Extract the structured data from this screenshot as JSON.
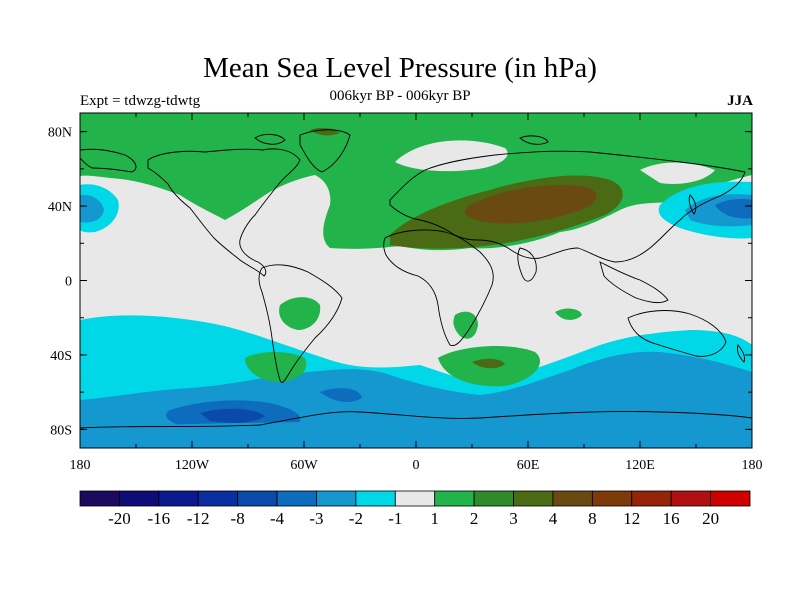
{
  "title": "Mean Sea Level Pressure (in hPa)",
  "subtitle_left": "Expt = tdwzg-tdwtg",
  "subtitle_center": "006kyr BP - 006kyr BP",
  "subtitle_right": "JJA",
  "map": {
    "projection": "cylindrical equidistant",
    "lon_range": [
      -180,
      180
    ],
    "lat_range": [
      -90,
      90
    ],
    "x_ticks": [
      "180",
      "120W",
      "60W",
      "0",
      "60E",
      "120E",
      "180"
    ],
    "y_ticks": [
      "80N",
      "40N",
      "0",
      "40S",
      "80S"
    ]
  },
  "colorbar": {
    "colors": [
      "#1b0a5e",
      "#0f0c78",
      "#0b1a8c",
      "#0a2fa0",
      "#0b4aa8",
      "#0d6cbc",
      "#1598d0",
      "#00d8e8",
      "#e8e8e8",
      "#22b34a",
      "#2e8a2a",
      "#4a6a14",
      "#6a4a10",
      "#7d3a0a",
      "#94240a",
      "#b01010",
      "#d00000"
    ],
    "labels": [
      "-20",
      "-16",
      "-12",
      "-8",
      "-4",
      "-3",
      "-2",
      "-1",
      "1",
      "2",
      "3",
      "4",
      "8",
      "12",
      "16",
      "20"
    ]
  }
}
